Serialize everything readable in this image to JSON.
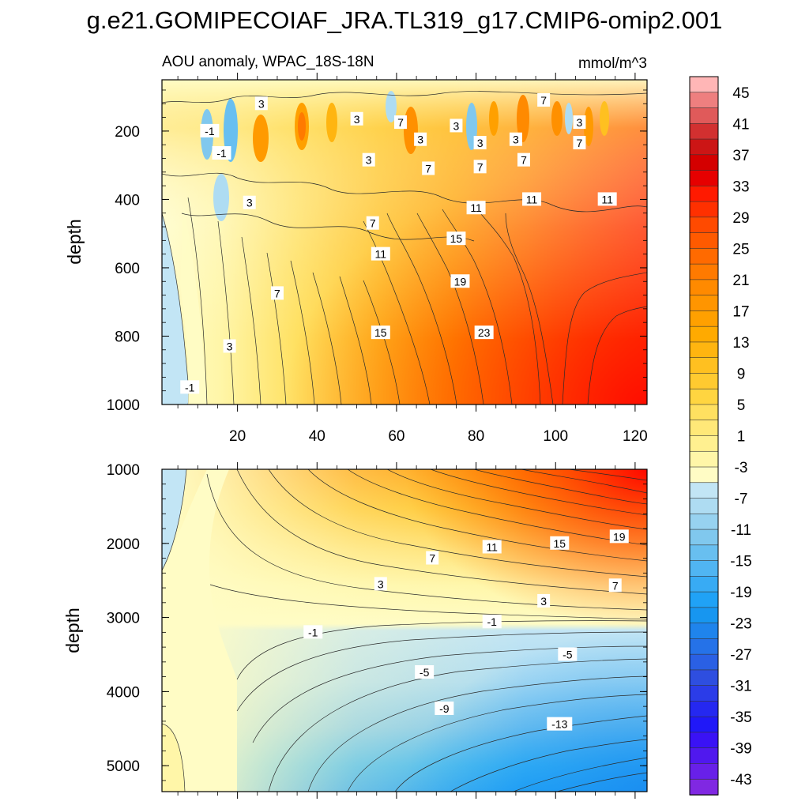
{
  "figure": {
    "title": "g.e21.GOMIPECOIAF_JRA.TL319_g17.CMIP6-omip2.001"
  },
  "chart_data": [
    {
      "type": "heatmap",
      "panel": "upper",
      "left_label": "AOU anomaly, WPAC_18S-18N",
      "right_label": "mmol/m^3",
      "ylabel": "depth",
      "xlabel": "",
      "xlim": [
        1,
        123
      ],
      "ylim": [
        1000,
        50
      ],
      "y_reversed": true,
      "x_ticks": [
        20,
        40,
        60,
        80,
        100,
        120
      ],
      "y_ticks": [
        200,
        400,
        600,
        800,
        1000
      ],
      "contour_labels": [
        {
          "text": "3",
          "x": 26,
          "y": 120
        },
        {
          "text": "7",
          "x": 97,
          "y": 110
        },
        {
          "text": "-1",
          "x": 13,
          "y": 200
        },
        {
          "text": "3",
          "x": 50,
          "y": 165
        },
        {
          "text": "7",
          "x": 61,
          "y": 175
        },
        {
          "text": "3",
          "x": 75,
          "y": 185
        },
        {
          "text": "3",
          "x": 106,
          "y": 175
        },
        {
          "text": "7",
          "x": 106,
          "y": 235
        },
        {
          "text": "-1",
          "x": 16,
          "y": 265
        },
        {
          "text": "3",
          "x": 66,
          "y": 225
        },
        {
          "text": "3",
          "x": 81,
          "y": 235
        },
        {
          "text": "3",
          "x": 90,
          "y": 225
        },
        {
          "text": "3",
          "x": 53,
          "y": 285
        },
        {
          "text": "7",
          "x": 92,
          "y": 285
        },
        {
          "text": "7",
          "x": 68,
          "y": 310
        },
        {
          "text": "7",
          "x": 81,
          "y": 305
        },
        {
          "text": "3",
          "x": 23,
          "y": 410
        },
        {
          "text": "11",
          "x": 94,
          "y": 400
        },
        {
          "text": "11",
          "x": 113,
          "y": 400
        },
        {
          "text": "11",
          "x": 80,
          "y": 425
        },
        {
          "text": "7",
          "x": 54,
          "y": 470
        },
        {
          "text": "15",
          "x": 75,
          "y": 515
        },
        {
          "text": "11",
          "x": 56,
          "y": 560
        },
        {
          "text": "19",
          "x": 76,
          "y": 640
        },
        {
          "text": "7",
          "x": 30,
          "y": 675
        },
        {
          "text": "15",
          "x": 56,
          "y": 790
        },
        {
          "text": "23",
          "x": 82,
          "y": 790
        },
        {
          "text": "3",
          "x": 18,
          "y": 830
        },
        {
          "text": "-1",
          "x": 8,
          "y": 950
        }
      ]
    },
    {
      "type": "heatmap",
      "panel": "lower",
      "ylabel": "depth",
      "xlabel": "",
      "xlim": [
        1,
        123
      ],
      "ylim": [
        5350,
        1000
      ],
      "y_reversed": true,
      "y_ticks": [
        1000,
        2000,
        3000,
        4000,
        5000
      ],
      "contour_labels": [
        {
          "text": "11",
          "x": 84,
          "y": 2050
        },
        {
          "text": "15",
          "x": 101,
          "y": 2000
        },
        {
          "text": "19",
          "x": 116,
          "y": 1910
        },
        {
          "text": "7",
          "x": 69,
          "y": 2200
        },
        {
          "text": "3",
          "x": 56,
          "y": 2550
        },
        {
          "text": "7",
          "x": 115,
          "y": 2570
        },
        {
          "text": "3",
          "x": 97,
          "y": 2780
        },
        {
          "text": "-1",
          "x": 84,
          "y": 3060
        },
        {
          "text": "-1",
          "x": 39,
          "y": 3200
        },
        {
          "text": "-5",
          "x": 103,
          "y": 3500
        },
        {
          "text": "-5",
          "x": 67,
          "y": 3740
        },
        {
          "text": "-9",
          "x": 72,
          "y": 4230
        },
        {
          "text": "-13",
          "x": 101,
          "y": 4440
        }
      ]
    }
  ],
  "colorbar": {
    "labels": [
      "45",
      "41",
      "37",
      "33",
      "29",
      "25",
      "21",
      "17",
      "13",
      "9",
      "5",
      "1",
      "-3",
      "-7",
      "-11",
      "-15",
      "-19",
      "-23",
      "-27",
      "-31",
      "-35",
      "-39",
      "-43"
    ],
    "colors": [
      "#ffb6b6",
      "#ee7f7f",
      "#e05a5a",
      "#d23030",
      "#cc1515",
      "#d40000",
      "#e60000",
      "#ff1a00",
      "#ff3000",
      "#ff4a00",
      "#ff5a00",
      "#ff6a00",
      "#ff7a00",
      "#ff8a00",
      "#ff9500",
      "#ffa000",
      "#ffaa00",
      "#ffb510",
      "#ffc020",
      "#ffca30",
      "#ffd540",
      "#ffe060",
      "#ffe878",
      "#fff090",
      "#fff6a8",
      "#fffcc5",
      "#c2e5f5",
      "#aedcf2",
      "#97d2f0",
      "#80c8ee",
      "#68bff0",
      "#50b5f2",
      "#38abf4",
      "#20a2f6",
      "#1796f0",
      "#1f84ec",
      "#2572e8",
      "#2a60e4",
      "#2e4ee0",
      "#2b3ce8",
      "#2528f0",
      "#2018f8",
      "#3a12f5",
      "#5018ee",
      "#6820e8",
      "#8028e2"
    ]
  }
}
